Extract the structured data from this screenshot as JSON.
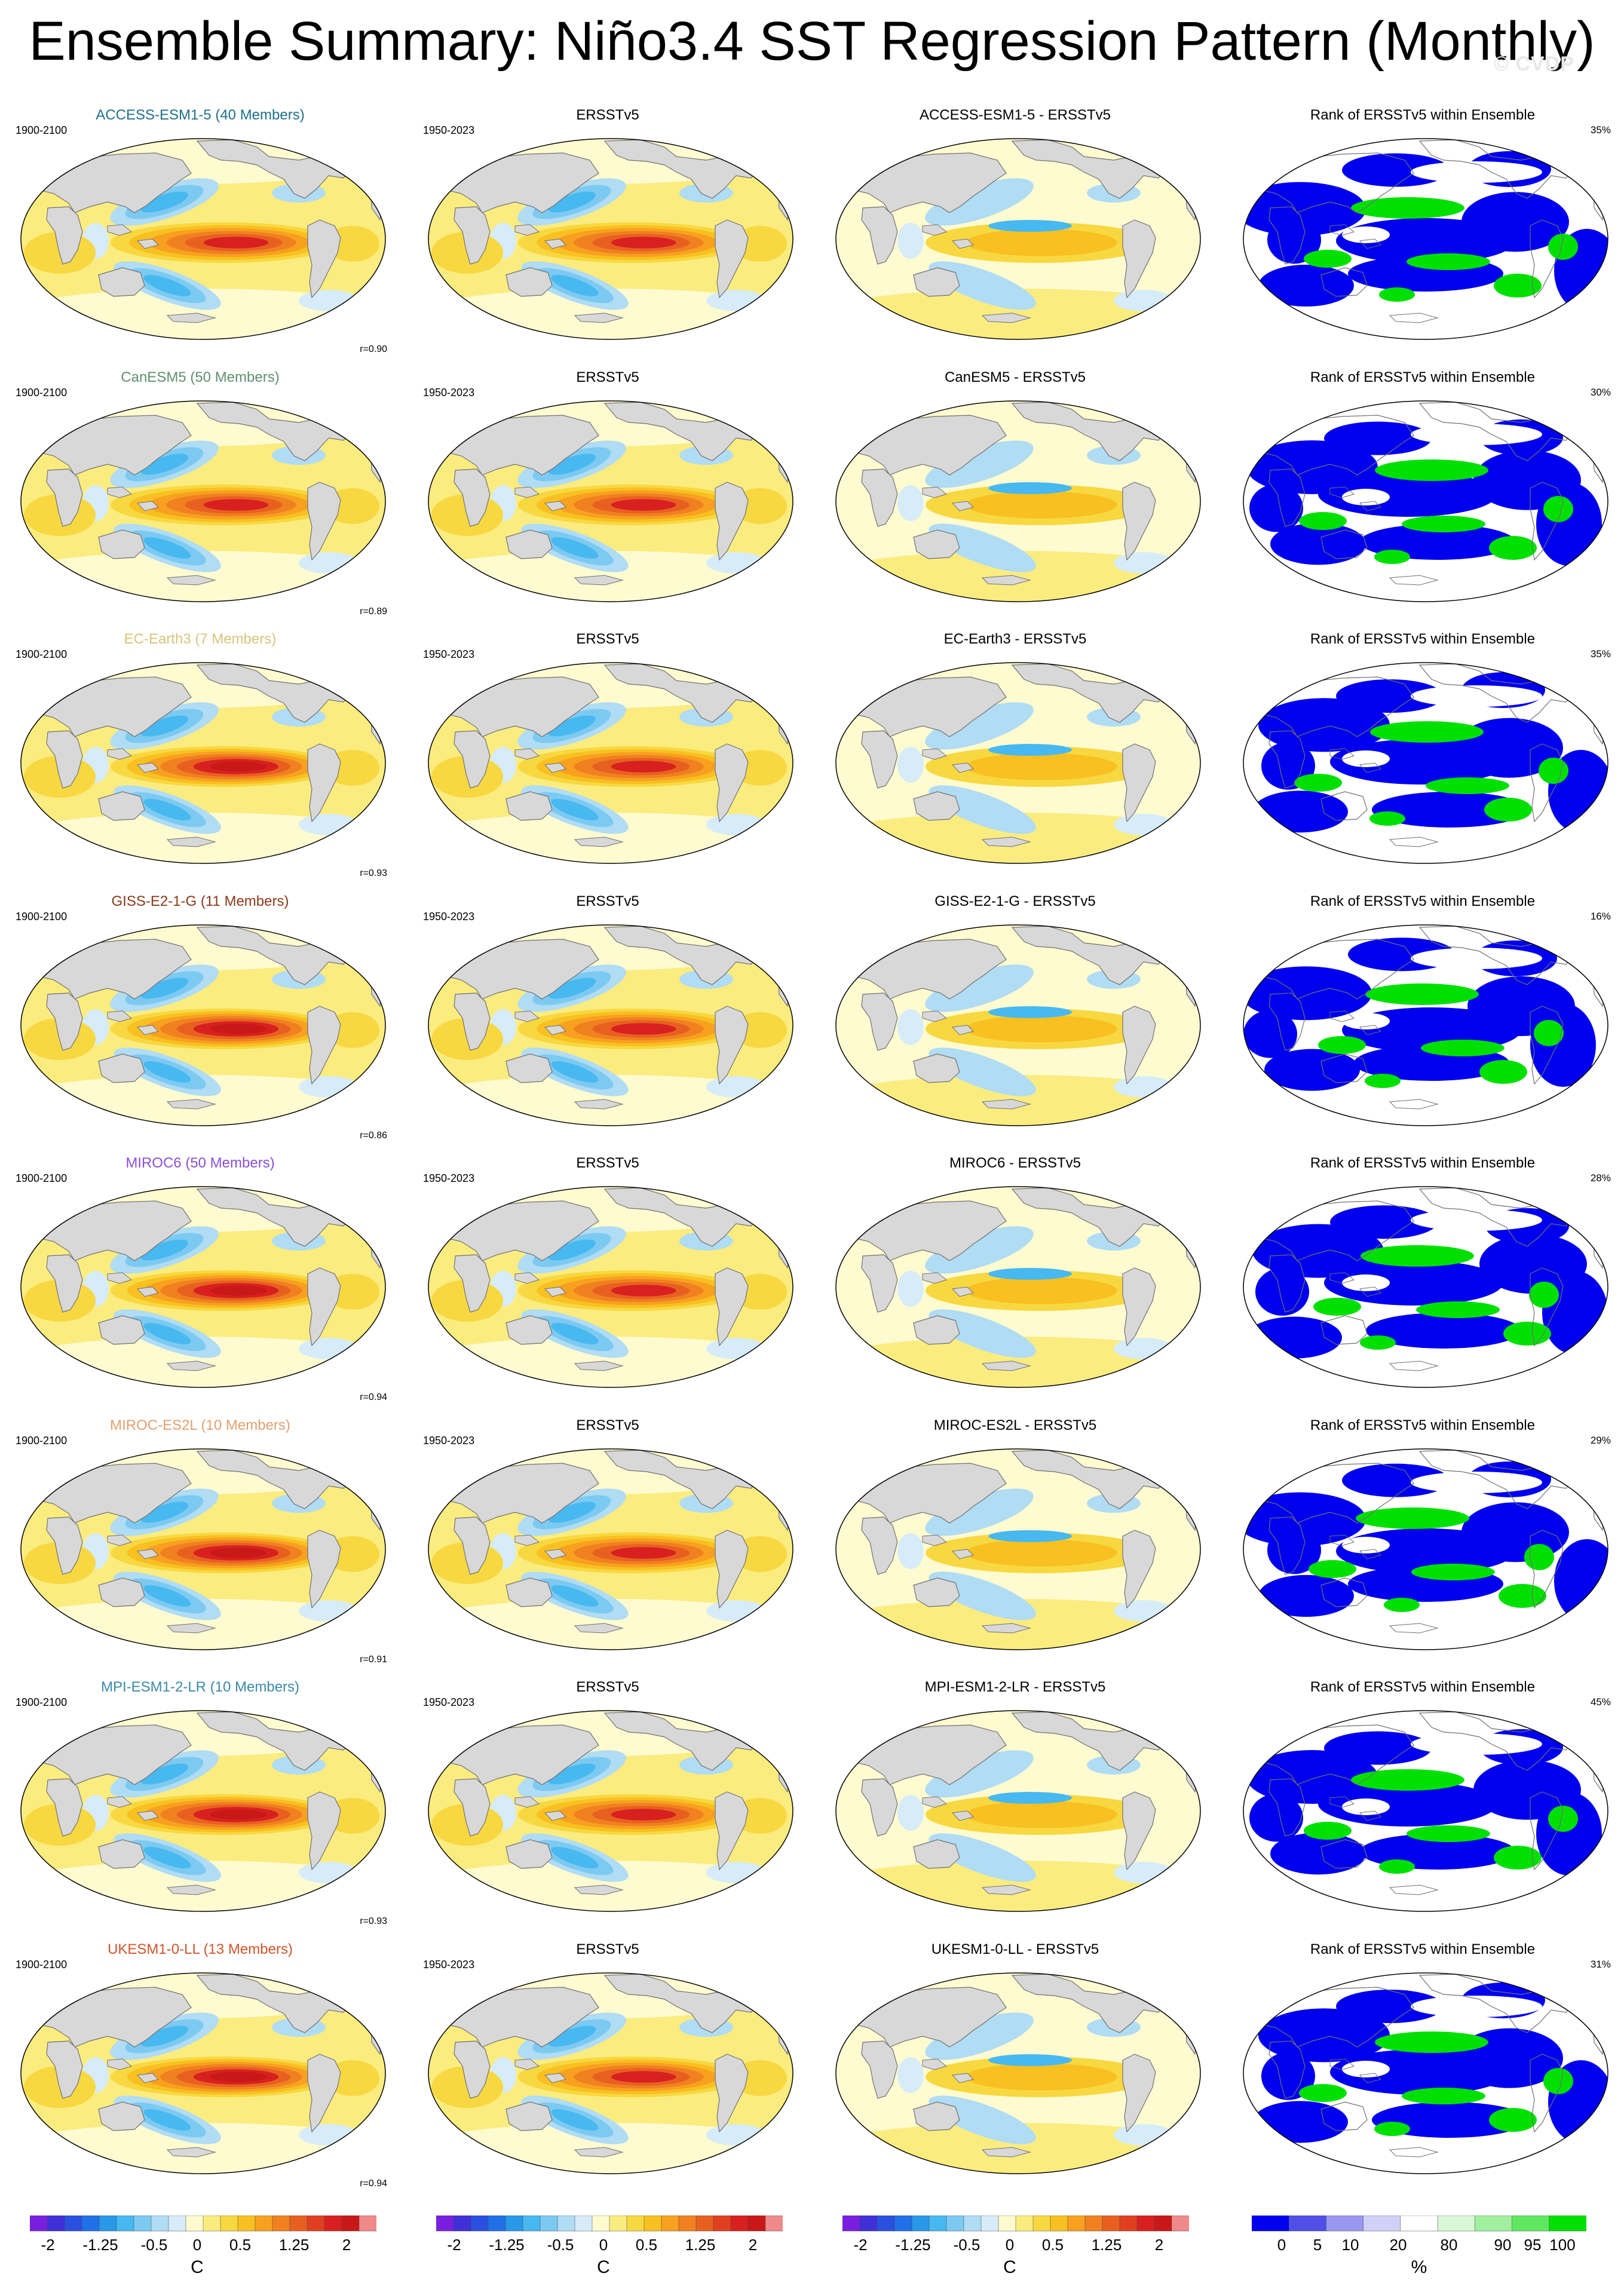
{
  "title": "Ensemble Summary: Niño3.4 SST Regression Pattern (Monthly)",
  "watermark": "© CVDP",
  "rows": [
    {
      "model": "ACCESS-ESM1-5 (40 Members)",
      "model_color": "#1f6f8b",
      "diff": "ACCESS-ESM1-5 - ERSSTv5",
      "r": "r=0.90",
      "pct": "35%",
      "amp": 1.0
    },
    {
      "model": "CanESM5 (50 Members)",
      "model_color": "#5f8f6f",
      "diff": "CanESM5 - ERSSTv5",
      "r": "r=0.89",
      "pct": "30%",
      "amp": 1.05
    },
    {
      "model": "EC-Earth3 (7 Members)",
      "model_color": "#d8c47a",
      "diff": "EC-Earth3 - ERSSTv5",
      "r": "r=0.93",
      "pct": "35%",
      "amp": 1.1
    },
    {
      "model": "GISS-E2-1-G (11 Members)",
      "model_color": "#8b3a1a",
      "diff": "GISS-E2-1-G - ERSSTv5",
      "r": "r=0.86",
      "pct": "16%",
      "amp": 1.35
    },
    {
      "model": "MIROC6 (50 Members)",
      "model_color": "#8a4fd8",
      "diff": "MIROC6 - ERSSTv5",
      "r": "r=0.94",
      "pct": "28%",
      "amp": 1.3
    },
    {
      "model": "MIROC-ES2L (10 Members)",
      "model_color": "#e2a070",
      "diff": "MIROC-ES2L - ERSSTv5",
      "r": "r=0.91",
      "pct": "29%",
      "amp": 1.25
    },
    {
      "model": "MPI-ESM1-2-LR (10 Members)",
      "model_color": "#3a8aa8",
      "diff": "MPI-ESM1-2-LR - ERSSTv5",
      "r": "r=0.93",
      "pct": "45%",
      "amp": 1.15
    },
    {
      "model": "UKESM1-0-LL (13 Members)",
      "model_color": "#d0542a",
      "diff": "UKESM1-0-LL - ERSSTv5",
      "r": "r=0.94",
      "pct": "31%",
      "amp": 1.1
    }
  ],
  "model_years": "1900-2100",
  "obs_label": "ERSSTv5",
  "obs_years": "1950-2023",
  "rank_title": "Rank of ERSSTv5 within Ensemble",
  "colorbar_sst": {
    "unit": "C",
    "tick_labels": [
      "-2",
      "-1.25",
      "-0.5",
      "0",
      "0.5",
      "1.25",
      "2"
    ],
    "colors": [
      "#7a1fe0",
      "#4030d8",
      "#2a50e0",
      "#2070e8",
      "#2898e8",
      "#48b8f0",
      "#7ccaf2",
      "#b0dcf4",
      "#d6ecf8",
      "#fffbd0",
      "#fbec80",
      "#f8d840",
      "#f8c020",
      "#f8a020",
      "#f08020",
      "#e86020",
      "#e04020",
      "#d82020",
      "#c81818",
      "#f08a8a"
    ]
  },
  "colorbar_rank": {
    "unit": "%",
    "tick_labels": [
      "0",
      "5",
      "10",
      "20",
      "80",
      "90",
      "95",
      "100"
    ],
    "colors": [
      "#0000ee",
      "#5050e8",
      "#9898f0",
      "#d0d0f8",
      "#ffffff",
      "#d8f8d8",
      "#a0f0a0",
      "#60e860",
      "#00e000"
    ]
  }
}
